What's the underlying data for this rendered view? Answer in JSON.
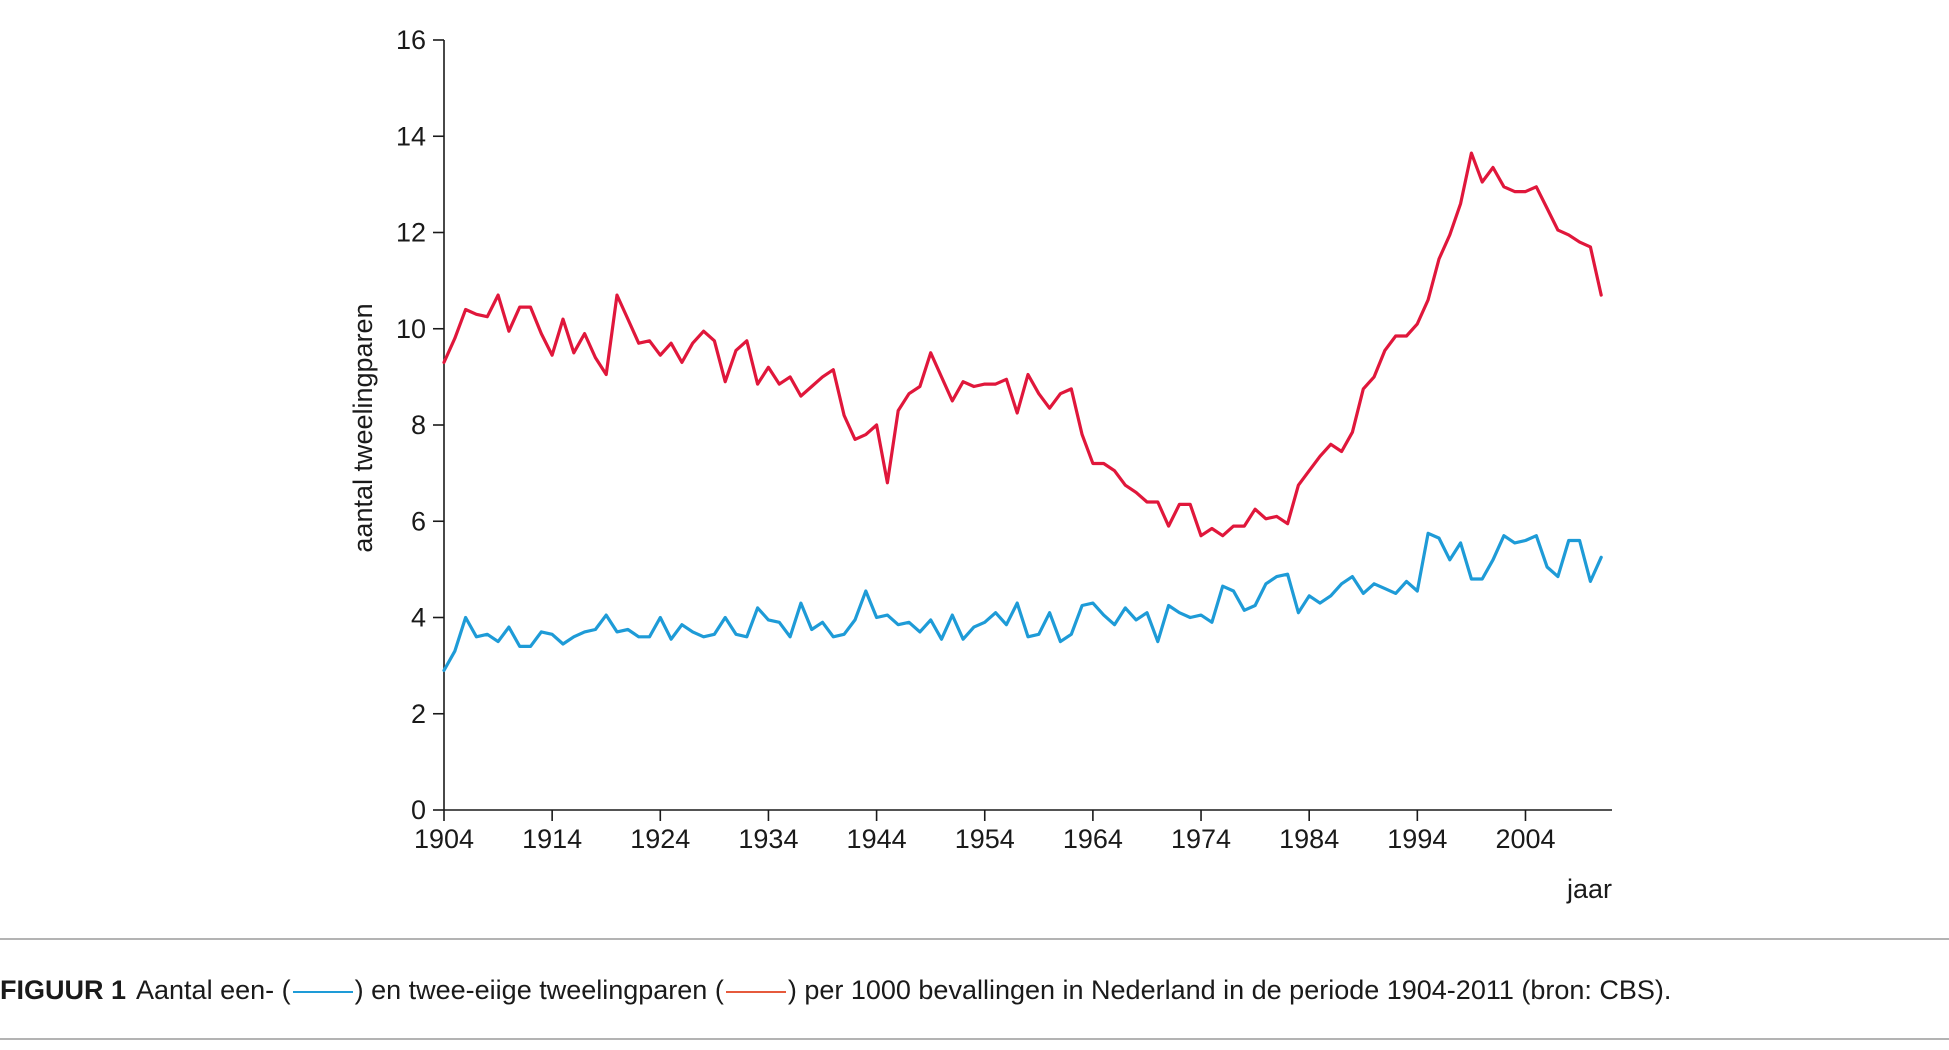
{
  "chart_data": {
    "type": "line",
    "title": "",
    "xlabel": "jaar",
    "ylabel": "aantal tweelingparen",
    "ylim": [
      0,
      16
    ],
    "xlim": [
      1904,
      2012
    ],
    "yticks": [
      "0",
      "2",
      "4",
      "6",
      "8",
      "10",
      "12",
      "14",
      "16"
    ],
    "xticks": [
      "1904",
      "1914",
      "1924",
      "1934",
      "1944",
      "1954",
      "1964",
      "1974",
      "1984",
      "1994",
      "2004"
    ],
    "x": [
      1904,
      1905,
      1906,
      1907,
      1908,
      1909,
      1910,
      1911,
      1912,
      1913,
      1914,
      1915,
      1916,
      1917,
      1918,
      1919,
      1920,
      1921,
      1922,
      1923,
      1924,
      1925,
      1926,
      1927,
      1928,
      1929,
      1930,
      1931,
      1932,
      1933,
      1934,
      1935,
      1936,
      1937,
      1938,
      1939,
      1940,
      1941,
      1942,
      1943,
      1944,
      1945,
      1946,
      1947,
      1948,
      1949,
      1950,
      1951,
      1952,
      1953,
      1954,
      1955,
      1956,
      1957,
      1958,
      1959,
      1960,
      1961,
      1962,
      1963,
      1964,
      1965,
      1966,
      1967,
      1968,
      1969,
      1970,
      1971,
      1972,
      1973,
      1974,
      1975,
      1976,
      1977,
      1978,
      1979,
      1980,
      1981,
      1982,
      1983,
      1984,
      1985,
      1986,
      1987,
      1988,
      1989,
      1990,
      1991,
      1992,
      1993,
      1994,
      1995,
      1996,
      1997,
      1998,
      1999,
      2000,
      2001,
      2002,
      2003,
      2004,
      2005,
      2006,
      2007,
      2008,
      2009,
      2010,
      2011
    ],
    "series": [
      {
        "name": "een-eiige tweelingparen",
        "color": "#1e9bd7",
        "values": [
          2.9,
          3.3,
          4.0,
          3.6,
          3.65,
          3.5,
          3.8,
          3.4,
          3.4,
          3.7,
          3.65,
          3.45,
          3.6,
          3.7,
          3.75,
          4.05,
          3.7,
          3.75,
          3.6,
          3.6,
          4.0,
          3.55,
          3.85,
          3.7,
          3.6,
          3.65,
          4.0,
          3.65,
          3.6,
          4.2,
          3.95,
          3.9,
          3.6,
          4.3,
          3.75,
          3.9,
          3.6,
          3.65,
          3.95,
          4.55,
          4.0,
          4.05,
          3.85,
          3.9,
          3.7,
          3.95,
          3.55,
          4.05,
          3.55,
          3.8,
          3.9,
          4.1,
          3.85,
          4.3,
          3.6,
          3.65,
          4.1,
          3.5,
          3.65,
          4.25,
          4.3,
          4.05,
          3.85,
          4.2,
          3.95,
          4.1,
          3.5,
          4.25,
          4.1,
          4.0,
          4.05,
          3.9,
          4.65,
          4.55,
          4.15,
          4.25,
          4.7,
          4.85,
          4.9,
          4.1,
          4.45,
          4.3,
          4.45,
          4.7,
          4.85,
          4.5,
          4.7,
          4.6,
          4.5,
          4.75,
          4.55,
          5.75,
          5.65,
          5.2,
          5.55,
          4.8,
          4.8,
          5.2,
          5.7,
          5.55,
          5.6,
          5.7,
          5.05,
          4.85,
          5.6,
          5.6,
          4.75,
          5.25
        ]
      },
      {
        "name": "twee-eiige tweelingparen",
        "color": "#e0173b",
        "values": [
          9.3,
          9.8,
          10.4,
          10.3,
          10.25,
          10.7,
          9.95,
          10.45,
          10.45,
          9.9,
          9.45,
          10.2,
          9.5,
          9.9,
          9.4,
          9.05,
          10.7,
          10.2,
          9.7,
          9.75,
          9.45,
          9.7,
          9.3,
          9.7,
          9.95,
          9.75,
          8.9,
          9.55,
          9.75,
          8.85,
          9.2,
          8.85,
          9.0,
          8.6,
          8.8,
          9.0,
          9.15,
          8.2,
          7.7,
          7.8,
          8.0,
          6.8,
          8.3,
          8.65,
          8.8,
          9.5,
          9.0,
          8.5,
          8.9,
          8.8,
          8.85,
          8.85,
          8.95,
          8.25,
          9.05,
          8.65,
          8.35,
          8.65,
          8.75,
          7.8,
          7.2,
          7.2,
          7.05,
          6.75,
          6.6,
          6.4,
          6.4,
          5.9,
          6.35,
          6.35,
          5.7,
          5.85,
          5.7,
          5.9,
          5.9,
          6.25,
          6.05,
          6.1,
          5.95,
          6.75,
          7.05,
          7.35,
          7.6,
          7.45,
          7.85,
          8.75,
          9.0,
          9.55,
          9.85,
          9.85,
          10.1,
          10.6,
          11.45,
          11.95,
          12.6,
          13.65,
          13.05,
          13.35,
          12.95,
          12.85,
          12.85,
          12.95,
          12.5,
          12.05,
          11.95,
          11.8,
          11.7,
          10.7
        ]
      }
    ]
  },
  "caption": {
    "label": "FIGUUR 1",
    "text_1": "Aantal een- (",
    "text_2": ") en twee-eiige tweelingparen (",
    "text_3": ") per 1000 bevallingen in Nederland in de periode 1904-2011 (bron: CBS).",
    "swatch_1_color": "#1e9bd7",
    "swatch_2_color": "#e65a3c"
  }
}
